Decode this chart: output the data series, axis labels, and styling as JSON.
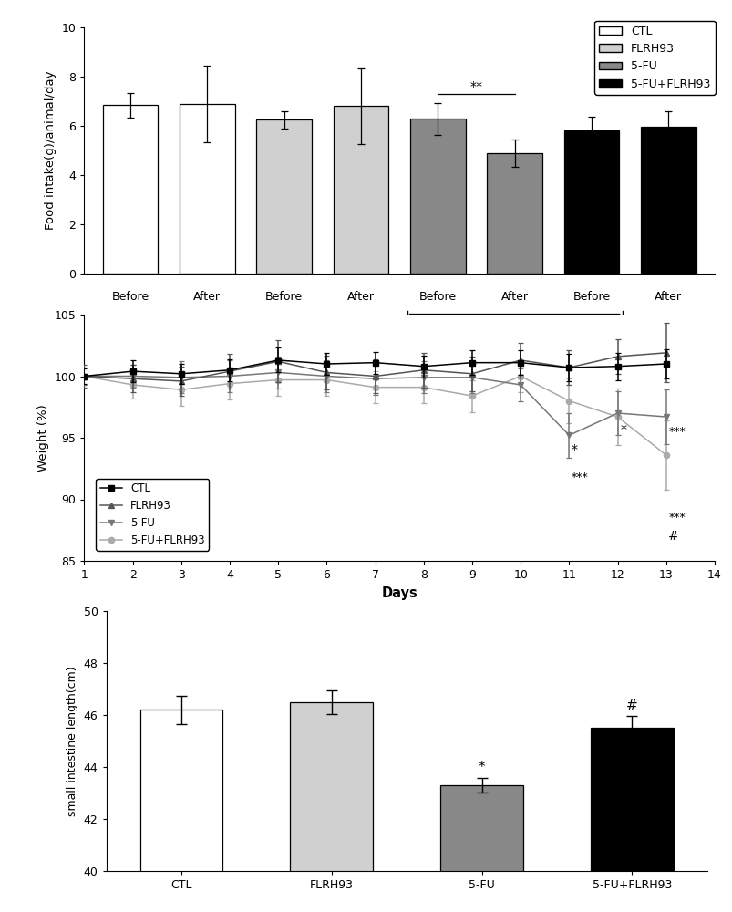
{
  "panel1": {
    "groups": [
      "CTL",
      "FLRH93",
      "5-FU",
      "5-FU+FLRH93"
    ],
    "bar_labels": [
      "Before",
      "After",
      "Before",
      "After",
      "Before",
      "After",
      "Before",
      "After"
    ],
    "values": [
      [
        6.85,
        6.9
      ],
      [
        6.25,
        6.8
      ],
      [
        6.28,
        4.9
      ],
      [
        5.82,
        5.95
      ]
    ],
    "errors": [
      [
        0.5,
        1.55
      ],
      [
        0.35,
        1.55
      ],
      [
        0.65,
        0.55
      ],
      [
        0.55,
        0.65
      ]
    ],
    "colors": [
      [
        "white",
        "white"
      ],
      [
        "#d0d0d0",
        "#d0d0d0"
      ],
      [
        "#888888",
        "#888888"
      ],
      [
        "black",
        "black"
      ]
    ],
    "ylabel": "Food intake(g)/animal/day",
    "ylim": [
      0,
      10
    ],
    "yticks": [
      0,
      2,
      4,
      6,
      8,
      10
    ],
    "sig_x1": 5,
    "sig_x2": 6,
    "sig_y": 7.3,
    "bracket_x1": 4.6,
    "bracket_x2": 7.4
  },
  "panel2": {
    "days": [
      1,
      2,
      3,
      4,
      5,
      6,
      7,
      8,
      9,
      10,
      11,
      12,
      13
    ],
    "CTL_mean": [
      100.0,
      100.4,
      100.2,
      100.5,
      101.3,
      101.0,
      101.1,
      100.8,
      101.1,
      101.1,
      100.7,
      100.8,
      101.0
    ],
    "CTL_err": [
      0.6,
      0.9,
      0.8,
      0.9,
      1.0,
      0.9,
      0.9,
      0.9,
      1.0,
      1.0,
      1.1,
      1.1,
      1.2
    ],
    "FLRH93_mean": [
      100.0,
      99.8,
      99.6,
      100.4,
      101.2,
      100.3,
      100.0,
      100.5,
      100.2,
      101.3,
      100.7,
      101.6,
      101.9
    ],
    "FLRH93_err": [
      0.9,
      1.1,
      1.2,
      1.4,
      1.7,
      1.4,
      1.4,
      1.4,
      1.4,
      1.4,
      1.4,
      1.4,
      2.4
    ],
    "FU5_mean": [
      100.0,
      100.0,
      99.9,
      100.0,
      100.3,
      100.0,
      99.8,
      99.9,
      99.9,
      99.3,
      95.2,
      97.0,
      96.7
    ],
    "FU5_err": [
      0.7,
      0.9,
      1.3,
      1.3,
      1.3,
      1.3,
      1.3,
      1.3,
      1.3,
      1.3,
      1.8,
      1.8,
      2.2
    ],
    "FUFLRH_mean": [
      100.0,
      99.3,
      98.9,
      99.4,
      99.7,
      99.7,
      99.1,
      99.1,
      98.4,
      100.0,
      98.0,
      96.7,
      93.6
    ],
    "FUFLRH_err": [
      0.7,
      1.1,
      1.3,
      1.3,
      1.3,
      1.3,
      1.3,
      1.3,
      1.3,
      1.3,
      1.8,
      2.3,
      2.8
    ],
    "ylabel": "Weight (%)",
    "xlabel": "Days",
    "ylim": [
      85,
      105
    ],
    "yticks": [
      85,
      90,
      95,
      100,
      105
    ],
    "xlim": [
      1,
      14
    ],
    "xticks": [
      1,
      2,
      3,
      4,
      5,
      6,
      7,
      8,
      9,
      10,
      11,
      12,
      13,
      14
    ]
  },
  "panel3": {
    "categories": [
      "CTL",
      "FLRH93",
      "5-FU",
      "5-FU+FLRH93"
    ],
    "values": [
      46.2,
      46.5,
      43.3,
      45.5
    ],
    "errors": [
      0.55,
      0.45,
      0.28,
      0.48
    ],
    "colors": [
      "white",
      "#d0d0d0",
      "#888888",
      "black"
    ],
    "ylabel": "small intestine length(cm)",
    "ylim": [
      40,
      50
    ],
    "yticks": [
      40,
      42,
      44,
      46,
      48,
      50
    ]
  }
}
